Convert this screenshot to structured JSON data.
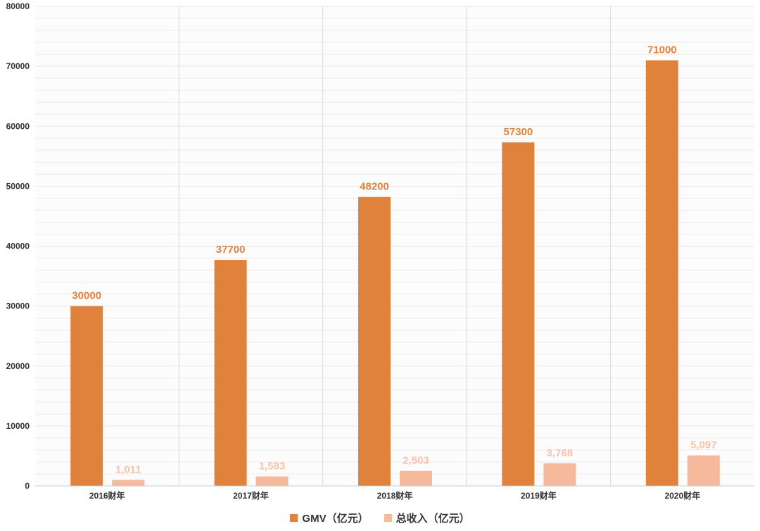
{
  "chart_data": {
    "type": "bar",
    "categories": [
      "2016财年",
      "2017财年",
      "2018财年",
      "2019财年",
      "2020财年"
    ],
    "series": [
      {
        "name": "GMV（亿元）",
        "values": [
          30000,
          37700,
          48200,
          57300,
          71000
        ],
        "labels": [
          "30000",
          "37700",
          "48200",
          "57300",
          "71000"
        ],
        "color": "#e0823c"
      },
      {
        "name": "总收入（亿元）",
        "values": [
          1011,
          1583,
          2503,
          3768,
          5097
        ],
        "labels": [
          "1,011",
          "1,583",
          "2,503",
          "3,768",
          "5,097"
        ],
        "color": "#f6b99c"
      }
    ],
    "y_ticks": [
      "0",
      "10000",
      "20000",
      "30000",
      "40000",
      "50000",
      "60000",
      "70000",
      "80000"
    ],
    "ylim": [
      0,
      80000
    ],
    "grid": true,
    "legend_position": "bottom-center"
  },
  "colors": {
    "gmv": "#e0823c",
    "revenue": "#f6b99c",
    "revenue_label": "#f6c3aa",
    "gridline": "#ececec",
    "separator": "#d8d8d8"
  }
}
